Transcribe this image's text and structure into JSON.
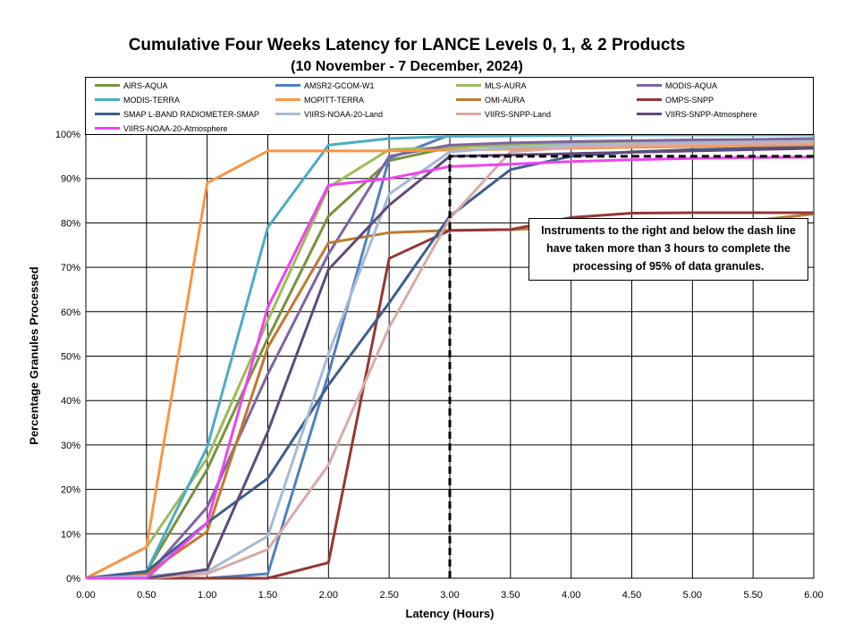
{
  "chart_data": {
    "type": "line",
    "title": "Cumulative Four Weeks Latency  for LANCE Levels 0, 1, & 2 Products",
    "subtitle": "(10  November   -  7  December,  2024)",
    "xlabel": "Latency (Hours)",
    "ylabel": "Percentage Granules Processed",
    "x_ticks": [
      "0.00",
      "0.50",
      "1.00",
      "1.50",
      "2.00",
      "2.50",
      "3.00",
      "3.50",
      "4.00",
      "4.50",
      "5.00",
      "5.50",
      "6.00"
    ],
    "y_ticks": [
      "0%",
      "10%",
      "20%",
      "30%",
      "40%",
      "50%",
      "60%",
      "70%",
      "80%",
      "90%",
      "100%"
    ],
    "xlim": [
      0,
      6
    ],
    "ylim": [
      0,
      100
    ],
    "grid": "horizontal",
    "annotation": "Instruments to the right and below the dash line have taken more than 3 hours to complete the processing of 95% of data granules.",
    "threshold": {
      "x": 3.0,
      "y": 95
    },
    "x": [
      0,
      0.5,
      1.0,
      1.5,
      2.0,
      2.5,
      3.0,
      3.5,
      4.0,
      4.5,
      5.0,
      5.5,
      6.0
    ],
    "series": [
      {
        "name": "AIRS-AQUA",
        "color": "#77933c",
        "values": [
          0,
          1.5,
          24.5,
          54,
          81.5,
          94,
          97,
          97.5,
          97.8,
          98,
          98.2,
          98.4,
          98.5
        ]
      },
      {
        "name": "AMSR2-GCOM-W1",
        "color": "#4f81bd",
        "values": [
          0,
          0,
          0,
          1,
          46,
          94.5,
          99.8,
          99.8,
          99.8,
          99.8,
          99.8,
          99.8,
          99.8
        ]
      },
      {
        "name": "MLS-AURA",
        "color": "#9bbb59",
        "values": [
          0,
          7,
          27,
          58,
          88,
          96.5,
          97,
          97.5,
          98,
          98.3,
          98.5,
          98.7,
          98.8
        ]
      },
      {
        "name": "MODIS-AQUA",
        "color": "#8064a2",
        "values": [
          0,
          0.5,
          16,
          46,
          73,
          95,
          97.5,
          98,
          98.3,
          98.5,
          98.7,
          98.8,
          99
        ]
      },
      {
        "name": "MODIS-TERRA",
        "color": "#4bacc6",
        "values": [
          0,
          1.5,
          29.5,
          79,
          97.5,
          99,
          99.5,
          99.6,
          99.7,
          99.8,
          99.8,
          99.8,
          99.8
        ]
      },
      {
        "name": "MOPITT-TERRA",
        "color": "#f79646",
        "values": [
          0,
          7,
          89,
          96.2,
          96.2,
          96.2,
          96.4,
          96.6,
          96.8,
          97,
          97.2,
          97.4,
          97.5
        ]
      },
      {
        "name": "OMI-AURA",
        "color": "#c0792f",
        "values": [
          0,
          1,
          10.5,
          52,
          75.5,
          77.8,
          78.3,
          78.5,
          79,
          79.5,
          80,
          80.5,
          82
        ]
      },
      {
        "name": "OMPS-SNPP",
        "color": "#953735",
        "values": [
          0,
          0,
          0,
          0,
          3.5,
          72,
          78.3,
          78.5,
          81.2,
          82.2,
          82.3,
          82.3,
          82.3
        ]
      },
      {
        "name": "SMAP L-BAND RADIOMETER-SMAP",
        "color": "#3c5f8c",
        "values": [
          0,
          1.5,
          12.5,
          22.5,
          43.5,
          62,
          81.5,
          92,
          95,
          96,
          96.5,
          96.8,
          97
        ]
      },
      {
        "name": "VIIRS-NOAA-20-Land",
        "color": "#a6b9d6",
        "values": [
          0,
          0.5,
          1.5,
          9.5,
          50.5,
          86.5,
          96,
          97,
          97.5,
          97.8,
          98,
          98.2,
          98.3
        ]
      },
      {
        "name": "VIIRS-SNPP-Land",
        "color": "#d9a9a8",
        "values": [
          0,
          0,
          1,
          6.5,
          25.5,
          56.5,
          81,
          96,
          97,
          97.4,
          97.6,
          97.8,
          98
        ]
      },
      {
        "name": "VIIRS-SNPP-Atmosphere",
        "color": "#604a7b",
        "values": [
          0,
          0,
          2,
          33,
          69.5,
          84,
          95,
          95.3,
          95.6,
          95.9,
          96.2,
          96.5,
          96.8
        ]
      },
      {
        "name": "VIIRS-NOAA-20-Atmosphere",
        "color": "#ee44ee",
        "values": [
          0,
          0,
          12.5,
          61,
          88.5,
          90,
          92.7,
          93.2,
          93.8,
          94.2,
          94.5,
          94.7,
          94.8
        ]
      }
    ]
  }
}
